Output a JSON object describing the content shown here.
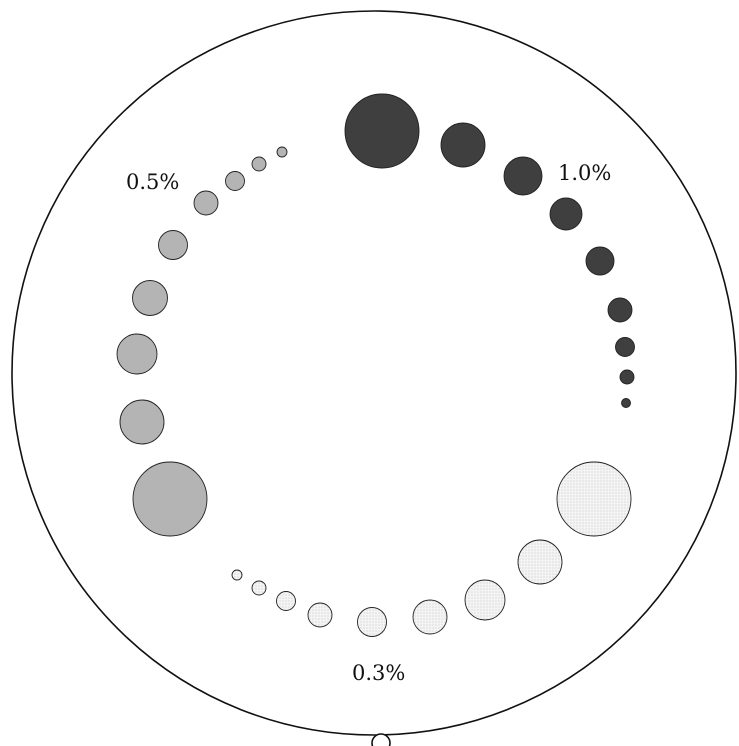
{
  "labels": {
    "dark": "1.0%",
    "mid": "0.5%",
    "light": "0.3%"
  },
  "groups": [
    {
      "name": "dark-dots",
      "fill": "#3f3f3f",
      "count": 9
    },
    {
      "name": "mid-dots",
      "fill": "#b4b4b4",
      "count": 9
    },
    {
      "name": "light-dots",
      "fill": "#efefef",
      "count": 9
    }
  ]
}
